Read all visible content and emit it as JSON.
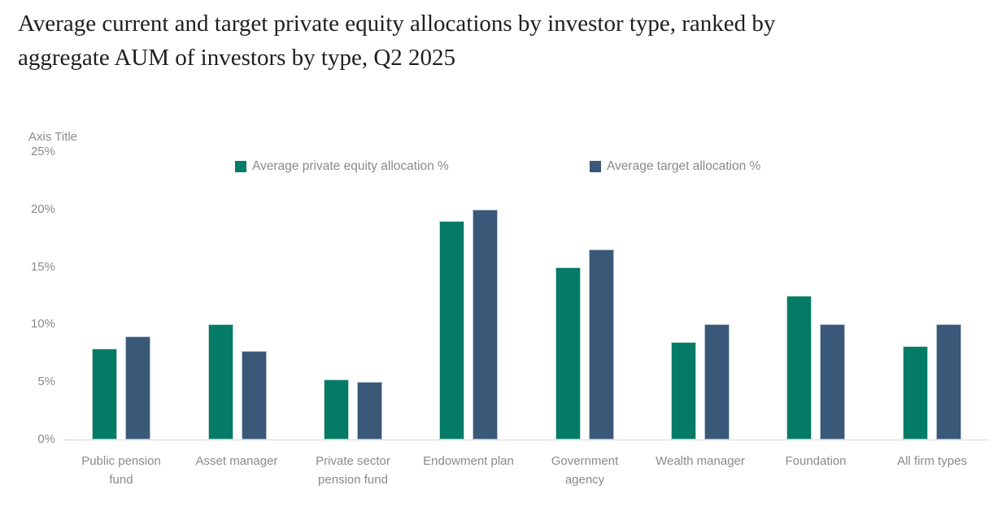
{
  "title": {
    "line1": "Average current and target private equity allocations by investor type, ranked by",
    "line2": "aggregate AUM of investors by type, Q2 2025"
  },
  "axis_title": "Axis Title",
  "legend": {
    "items": [
      {
        "label": "Average private equity allocation %",
        "color": "#047B66"
      },
      {
        "label": "Average target allocation %",
        "color": "#3A5877"
      }
    ],
    "position": "top"
  },
  "colors": {
    "series_current": "#047B66",
    "series_target": "#3A5877",
    "axis_line": "#D9D9D9",
    "text_gray": "#8A8A8A",
    "title_text": "#1F1F1F"
  },
  "chart_data": {
    "type": "bar",
    "title": "Average current and target private equity allocations by investor type, ranked by aggregate AUM of investors by type, Q2 2025",
    "categories": [
      "Public pension fund",
      "Asset manager",
      "Private sector pension fund",
      "Endowment plan",
      "Government agency",
      "Wealth manager",
      "Foundation",
      "All firm types"
    ],
    "category_label_lines": [
      [
        "Public pension",
        "fund"
      ],
      [
        "Asset manager"
      ],
      [
        "Private sector",
        "pension fund"
      ],
      [
        "Endowment plan"
      ],
      [
        "Government",
        "agency"
      ],
      [
        "Wealth manager"
      ],
      [
        "Foundation"
      ],
      [
        "All firm types"
      ]
    ],
    "series": [
      {
        "name": "Average private equity allocation %",
        "color": "#047B66",
        "values": [
          7.9,
          10.0,
          5.2,
          19.0,
          15.0,
          8.5,
          12.5,
          8.1
        ]
      },
      {
        "name": "Average target allocation %",
        "color": "#3A5877",
        "values": [
          9.0,
          7.7,
          5.0,
          20.0,
          16.5,
          10.0,
          10.0,
          10.0
        ]
      }
    ],
    "xlabel": "",
    "ylabel": "Axis Title",
    "ylim": [
      0,
      25
    ],
    "ytick_step": 5,
    "ytick_labels": [
      "0%",
      "5%",
      "10%",
      "15%",
      "20%",
      "25%"
    ],
    "grid": false,
    "legend_position": "top"
  }
}
